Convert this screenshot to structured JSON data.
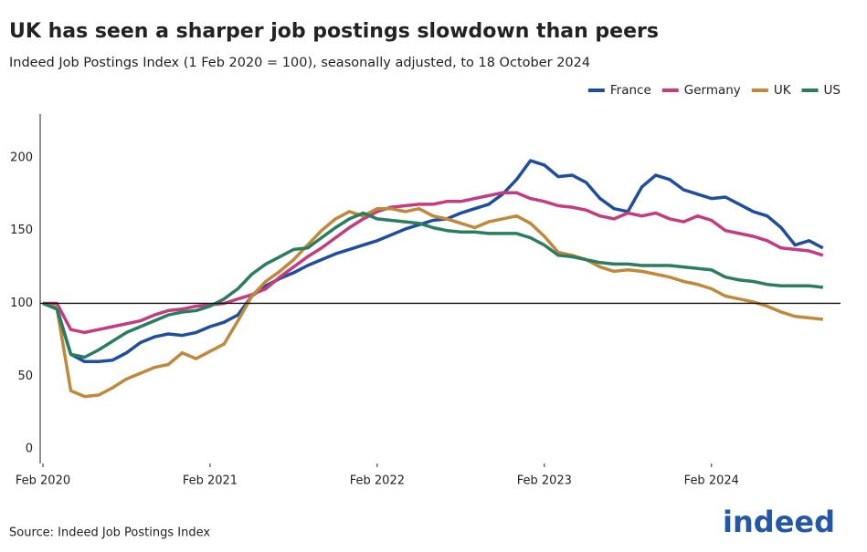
{
  "chart_data": {
    "type": "line",
    "title": "UK has seen a sharper job postings slowdown than peers",
    "subtitle": "Indeed Job Postings Index (1 Feb 2020 = 100), seasonally adjusted, to 18 October 2024",
    "source": "Source: Indeed Job Postings Index",
    "logo": "indeed",
    "x": [
      "2020-02",
      "2020-03",
      "2020-04",
      "2020-05",
      "2020-06",
      "2020-07",
      "2020-08",
      "2020-09",
      "2020-10",
      "2020-11",
      "2020-12",
      "2021-01",
      "2021-02",
      "2021-03",
      "2021-04",
      "2021-05",
      "2021-06",
      "2021-07",
      "2021-08",
      "2021-09",
      "2021-10",
      "2021-11",
      "2021-12",
      "2022-01",
      "2022-02",
      "2022-03",
      "2022-04",
      "2022-05",
      "2022-06",
      "2022-07",
      "2022-08",
      "2022-09",
      "2022-10",
      "2022-11",
      "2022-12",
      "2023-01",
      "2023-02",
      "2023-03",
      "2023-04",
      "2023-05",
      "2023-06",
      "2023-07",
      "2023-08",
      "2023-09",
      "2023-10",
      "2023-11",
      "2023-12",
      "2024-01",
      "2024-02",
      "2024-03",
      "2024-04",
      "2024-05",
      "2024-06",
      "2024-07",
      "2024-08",
      "2024-09",
      "2024-10"
    ],
    "series": [
      {
        "name": "France",
        "color": "#1f4e9e",
        "values": [
          100,
          97,
          65,
          60,
          60,
          61,
          66,
          73,
          77,
          79,
          78,
          80,
          84,
          87,
          92,
          105,
          112,
          117,
          121,
          126,
          130,
          134,
          137,
          140,
          143,
          147,
          151,
          154,
          157,
          158,
          162,
          165,
          168,
          175,
          185,
          198,
          195,
          187,
          188,
          183,
          172,
          165,
          163,
          180,
          188,
          185,
          178,
          175,
          172,
          173,
          168,
          163,
          160,
          152,
          140,
          143,
          138
        ]
      },
      {
        "name": "Germany",
        "color": "#c43c80",
        "values": [
          100,
          100,
          82,
          80,
          82,
          84,
          86,
          88,
          92,
          95,
          96,
          98,
          99,
          100,
          103,
          106,
          110,
          118,
          125,
          132,
          138,
          145,
          152,
          158,
          163,
          166,
          167,
          168,
          168,
          170,
          170,
          172,
          174,
          176,
          176,
          172,
          170,
          167,
          166,
          164,
          160,
          158,
          162,
          160,
          162,
          158,
          156,
          160,
          157,
          150,
          148,
          146,
          143,
          138,
          137,
          136,
          133
        ]
      },
      {
        "name": "UK",
        "color": "#c0883b",
        "values": [
          100,
          97,
          40,
          36,
          37,
          42,
          48,
          52,
          56,
          58,
          66,
          62,
          67,
          72,
          88,
          105,
          115,
          122,
          130,
          140,
          150,
          158,
          163,
          160,
          165,
          165,
          163,
          165,
          160,
          158,
          155,
          152,
          156,
          158,
          160,
          155,
          146,
          135,
          133,
          130,
          125,
          122,
          123,
          122,
          120,
          118,
          115,
          113,
          110,
          105,
          103,
          101,
          98,
          94,
          91,
          90,
          89
        ]
      },
      {
        "name": "US",
        "color": "#2b7d5f",
        "values": [
          100,
          96,
          65,
          63,
          68,
          74,
          80,
          84,
          88,
          92,
          94,
          95,
          98,
          103,
          110,
          120,
          127,
          132,
          137,
          138,
          145,
          152,
          158,
          162,
          158,
          157,
          156,
          155,
          152,
          150,
          149,
          149,
          148,
          148,
          148,
          145,
          140,
          133,
          132,
          130,
          128,
          127,
          127,
          126,
          126,
          126,
          125,
          124,
          123,
          118,
          116,
          115,
          113,
          112,
          112,
          112,
          111
        ]
      }
    ],
    "xlim": [
      "2020-02",
      "2024-11"
    ],
    "xticks": [
      {
        "value": "2020-02",
        "label": "Feb 2020"
      },
      {
        "value": "2021-02",
        "label": "Feb 2021"
      },
      {
        "value": "2022-02",
        "label": "Feb 2022"
      },
      {
        "value": "2023-02",
        "label": "Feb 2023"
      },
      {
        "value": "2024-02",
        "label": "Feb 2024"
      }
    ],
    "ylim": [
      -10,
      230
    ],
    "yticks": [
      0,
      50,
      100,
      150,
      200
    ],
    "reference_line": 100,
    "legend": "top-right"
  }
}
